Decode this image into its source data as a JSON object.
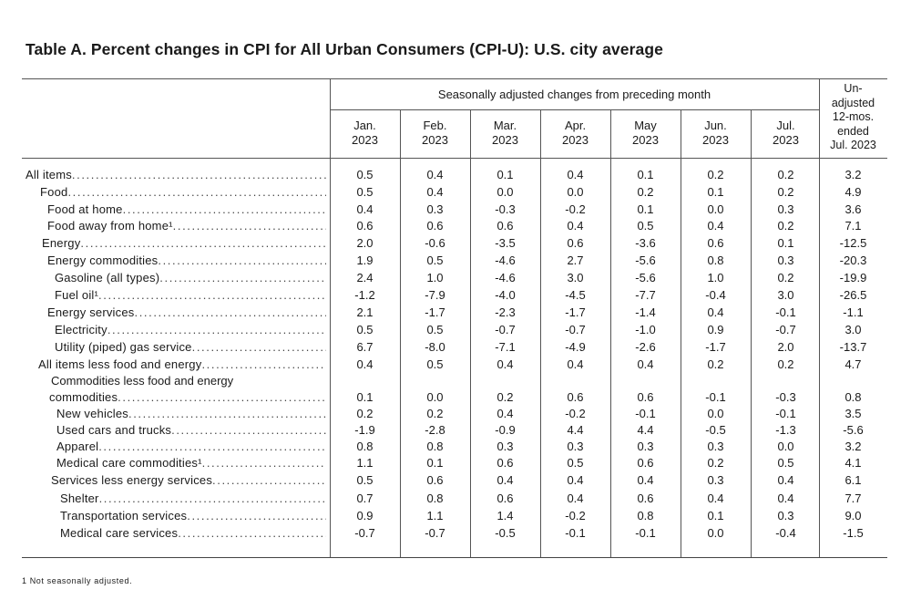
{
  "title": "Table A. Percent changes in CPI for All Urban Consumers (CPI-U): U.S. city average",
  "group_header": "Seasonally adjusted changes from preceding month",
  "unadjusted_header": [
    "Un-",
    "adjusted",
    "12-mos.",
    "ended",
    "Jul. 2023"
  ],
  "columns": [
    [
      "Jan.",
      "2023"
    ],
    [
      "Feb.",
      "2023"
    ],
    [
      "Mar.",
      "2023"
    ],
    [
      "Apr.",
      "2023"
    ],
    [
      "May",
      "2023"
    ],
    [
      "Jun.",
      "2023"
    ],
    [
      "Jul.",
      "2023"
    ]
  ],
  "rows": [
    {
      "label": "All items",
      "values": [
        "0.5",
        "0.4",
        "0.1",
        "0.4",
        "0.1",
        "0.2",
        "0.2",
        "3.2"
      ]
    },
    {
      "label": "Food",
      "values": [
        "0.5",
        "0.4",
        "0.0",
        "0.0",
        "0.2",
        "0.1",
        "0.2",
        "4.9"
      ]
    },
    {
      "label": "Food at home",
      "values": [
        "0.4",
        "0.3",
        "-0.3",
        "-0.2",
        "0.1",
        "0.0",
        "0.3",
        "3.6"
      ]
    },
    {
      "label": "Food away from home¹",
      "values": [
        "0.6",
        "0.6",
        "0.6",
        "0.4",
        "0.5",
        "0.4",
        "0.2",
        "7.1"
      ]
    },
    {
      "label": "Energy",
      "values": [
        "2.0",
        "-0.6",
        "-3.5",
        "0.6",
        "-3.6",
        "0.6",
        "0.1",
        "-12.5"
      ]
    },
    {
      "label": "Energy commodities",
      "values": [
        "1.9",
        "0.5",
        "-4.6",
        "2.7",
        "-5.6",
        "0.8",
        "0.3",
        "-20.3"
      ]
    },
    {
      "label": "Gasoline (all types)",
      "values": [
        "2.4",
        "1.0",
        "-4.6",
        "3.0",
        "-5.6",
        "1.0",
        "0.2",
        "-19.9"
      ]
    },
    {
      "label": "Fuel oil¹",
      "values": [
        "-1.2",
        "-7.9",
        "-4.0",
        "-4.5",
        "-7.7",
        "-0.4",
        "3.0",
        "-26.5"
      ]
    },
    {
      "label": "Energy services",
      "values": [
        "2.1",
        "-1.7",
        "-2.3",
        "-1.7",
        "-1.4",
        "0.4",
        "-0.1",
        "-1.1"
      ]
    },
    {
      "label": "Electricity",
      "values": [
        "0.5",
        "0.5",
        "-0.7",
        "-0.7",
        "-1.0",
        "0.9",
        "-0.7",
        "3.0"
      ]
    },
    {
      "label": "Utility (piped) gas service",
      "values": [
        "6.7",
        "-8.0",
        "-7.1",
        "-4.9",
        "-2.6",
        "-1.7",
        "2.0",
        "-13.7"
      ]
    },
    {
      "label": "All items less food and energy",
      "values": [
        "0.4",
        "0.5",
        "0.4",
        "0.4",
        "0.4",
        "0.2",
        "0.2",
        "4.7"
      ]
    },
    {
      "label_line1": "Commodities less food and energy",
      "label": "commodities",
      "values": [
        "0.1",
        "0.0",
        "0.2",
        "0.6",
        "0.6",
        "-0.1",
        "-0.3",
        "0.8"
      ]
    },
    {
      "label": "New vehicles",
      "values": [
        "0.2",
        "0.2",
        "0.4",
        "-0.2",
        "-0.1",
        "0.0",
        "-0.1",
        "3.5"
      ]
    },
    {
      "label": "Used cars and trucks",
      "values": [
        "-1.9",
        "-2.8",
        "-0.9",
        "4.4",
        "4.4",
        "-0.5",
        "-1.3",
        "-5.6"
      ]
    },
    {
      "label": "Apparel",
      "values": [
        "0.8",
        "0.8",
        "0.3",
        "0.3",
        "0.3",
        "0.3",
        "0.0",
        "3.2"
      ]
    },
    {
      "label": "Medical care commodities¹",
      "values": [
        "1.1",
        "0.1",
        "0.6",
        "0.5",
        "0.6",
        "0.2",
        "0.5",
        "4.1"
      ]
    },
    {
      "label": "Services less energy services",
      "values": [
        "0.5",
        "0.6",
        "0.4",
        "0.4",
        "0.4",
        "0.3",
        "0.4",
        "6.1"
      ]
    },
    {
      "label": "Shelter",
      "values": [
        "0.7",
        "0.8",
        "0.6",
        "0.4",
        "0.6",
        "0.4",
        "0.4",
        "7.7"
      ]
    },
    {
      "label": "Transportation services",
      "values": [
        "0.9",
        "1.1",
        "1.4",
        "-0.2",
        "0.8",
        "0.1",
        "0.3",
        "9.0"
      ]
    },
    {
      "label": "Medical care services",
      "values": [
        "-0.7",
        "-0.7",
        "-0.5",
        "-0.1",
        "-0.1",
        "0.0",
        "-0.4",
        "-1.5"
      ]
    }
  ],
  "footnote": "1 Not seasonally adjusted."
}
